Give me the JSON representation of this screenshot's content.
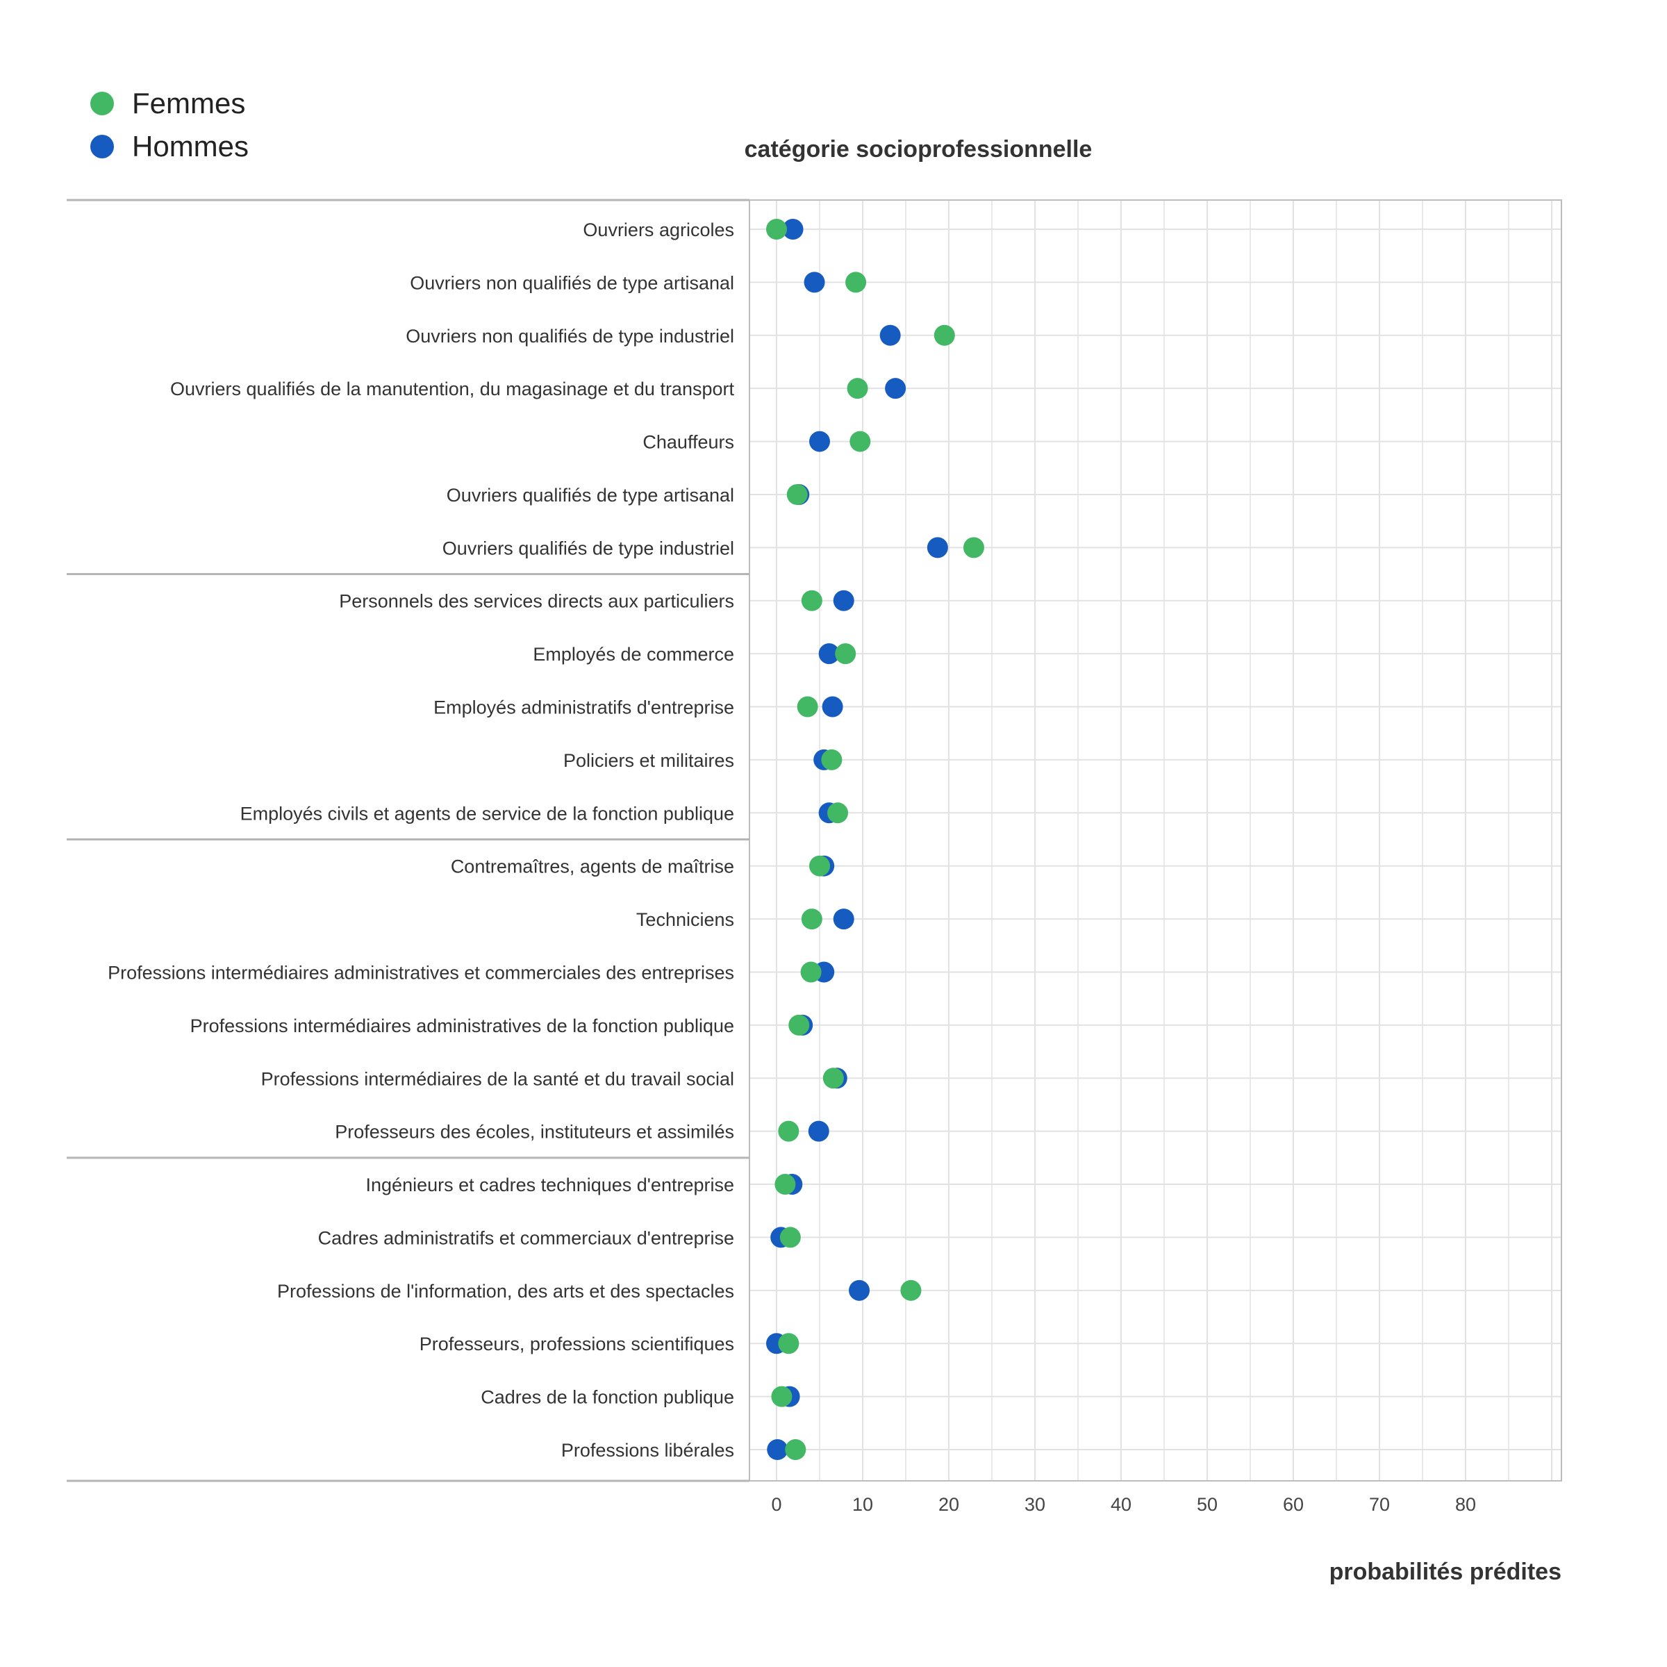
{
  "chart_data": {
    "type": "scatter",
    "title": "catégorie socioprofessionnelle",
    "xlabel": "probabilités prédites",
    "ylabel": "catégorie socioprofessionnelle",
    "xlim": [
      -4,
      91
    ],
    "xticks": [
      0,
      10,
      20,
      30,
      40,
      50,
      60,
      70,
      80
    ],
    "grid": true,
    "legend_position": "top-left",
    "colors": {
      "Femmes": "#43b864",
      "Hommes": "#165bbf"
    },
    "categories": [
      "Ouvriers agricoles",
      "Ouvriers non qualifiés de type artisanal",
      "Ouvriers non qualifiés de type industriel",
      "Ouvriers qualifiés de la manutention, du magasinage et du transport",
      "Chauffeurs",
      "Ouvriers qualifiés de type artisanal",
      "Ouvriers qualifiés de type industriel",
      "Personnels des services directs aux particuliers",
      "Employés de commerce",
      "Employés administratifs d'entreprise",
      "Policiers et militaires",
      "Employés civils et agents de service de la fonction publique",
      "Contremaîtres, agents de maîtrise",
      "Techniciens",
      "Professions intermédiaires administratives et commerciales des entreprises",
      "Professions intermédiaires administratives de la fonction publique",
      "Professions intermédiaires de la santé et du travail social",
      "Professeurs des écoles, instituteurs et assimilés",
      "Ingénieurs et cadres techniques d'entreprise",
      "Cadres administratifs et commerciaux d'entreprise",
      "Professions de l'information, des arts et des spectacles",
      "Professeurs, professions scientifiques",
      "Cadres de la fonction publique",
      "Professions libérales"
    ],
    "group_breaks_after": [
      6,
      11,
      17
    ],
    "series": [
      {
        "name": "Hommes",
        "values": [
          1.9,
          4.4,
          13.2,
          13.8,
          5.0,
          2.6,
          18.7,
          7.8,
          6.1,
          6.5,
          5.5,
          6.1,
          5.5,
          7.8,
          5.5,
          3.0,
          7.0,
          4.9,
          1.8,
          0.5,
          9.6,
          0.0,
          1.5,
          0.1
        ]
      },
      {
        "name": "Femmes",
        "values": [
          0.0,
          9.2,
          19.5,
          9.4,
          9.7,
          2.4,
          22.9,
          4.1,
          8.0,
          3.6,
          6.4,
          7.1,
          5.0,
          4.1,
          4.0,
          2.6,
          6.6,
          1.4,
          1.0,
          1.6,
          15.6,
          1.4,
          0.6,
          2.2
        ]
      }
    ],
    "legend": [
      "Femmes",
      "Hommes"
    ]
  }
}
